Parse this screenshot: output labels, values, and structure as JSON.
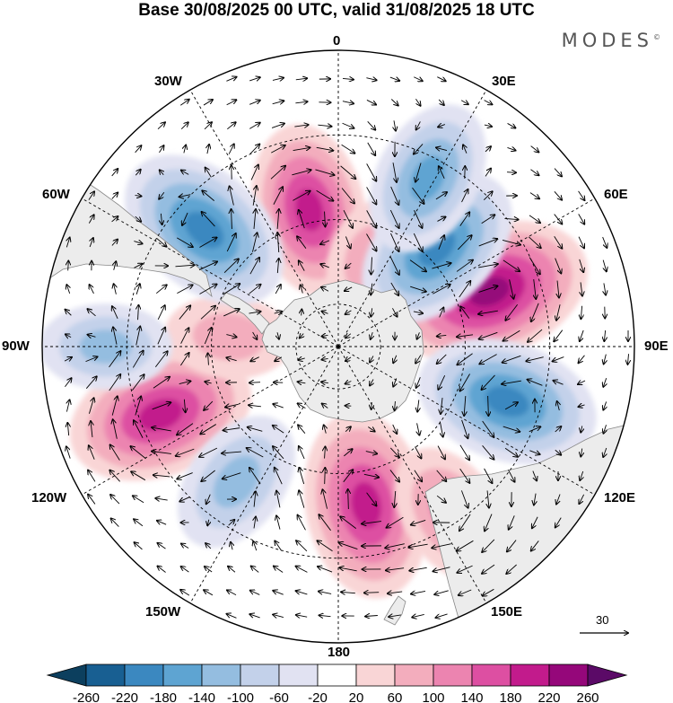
{
  "title": "Base 30/08/2025 00 UTC, valid 31/08/2025 18 UTC",
  "brand": "MODES",
  "brand_mark": "©",
  "longitude_labels": {
    "lon_0": "0",
    "lon_30e": "30E",
    "lon_60e": "60E",
    "lon_90e": "90E",
    "lon_120e": "120E",
    "lon_150e": "150E",
    "lon_180": "180",
    "lon_150w": "150W",
    "lon_120w": "120W",
    "lon_90w": "90W",
    "lon_60w": "60W",
    "lon_30w": "30W"
  },
  "reference_vector": {
    "label": "30"
  },
  "colorbar": {
    "colors": [
      "#0c3f5e",
      "#185f92",
      "#3b88c0",
      "#5ea4d2",
      "#94bde0",
      "#c3d1ea",
      "#e1e2f2",
      "#ffffff",
      "#f9d5d6",
      "#f3adbd",
      "#ec84b0",
      "#dd4fa2",
      "#c21b8c",
      "#95077a",
      "#5b0a67"
    ],
    "ticks": [
      "-260",
      "-220",
      "-180",
      "-140",
      "-100",
      "-60",
      "-20",
      "20",
      "60",
      "100",
      "140",
      "180",
      "220",
      "260"
    ]
  },
  "anomaly_centers": [
    {
      "name": "pos-1",
      "lon": -12,
      "lat": -57,
      "value": 180
    },
    {
      "name": "pos-2",
      "lon": 70,
      "lat": -52,
      "value": 240
    },
    {
      "name": "pos-3",
      "lon": -111,
      "lat": -45,
      "value": 210
    },
    {
      "name": "pos-4",
      "lon": 170,
      "lat": -52,
      "value": 210
    },
    {
      "name": "pos-5",
      "lon": 146,
      "lat": -42,
      "value": 130
    },
    {
      "name": "pos-6",
      "lon": -85,
      "lat": -64,
      "value": 90
    },
    {
      "name": "pos-7",
      "lon": 18,
      "lat": -68,
      "value": 70
    },
    {
      "name": "neg-1",
      "lon": -49,
      "lat": -48,
      "value": -200
    },
    {
      "name": "neg-2",
      "lon": 45,
      "lat": -57,
      "value": -190
    },
    {
      "name": "neg-3",
      "lon": 28,
      "lat": -45,
      "value": -150
    },
    {
      "name": "neg-4",
      "lon": 108,
      "lat": -48,
      "value": -200
    },
    {
      "name": "neg-5",
      "lon": -143,
      "lat": -50,
      "value": -130
    },
    {
      "name": "neg-6",
      "lon": -90,
      "lat": -35,
      "value": -100
    }
  ]
}
